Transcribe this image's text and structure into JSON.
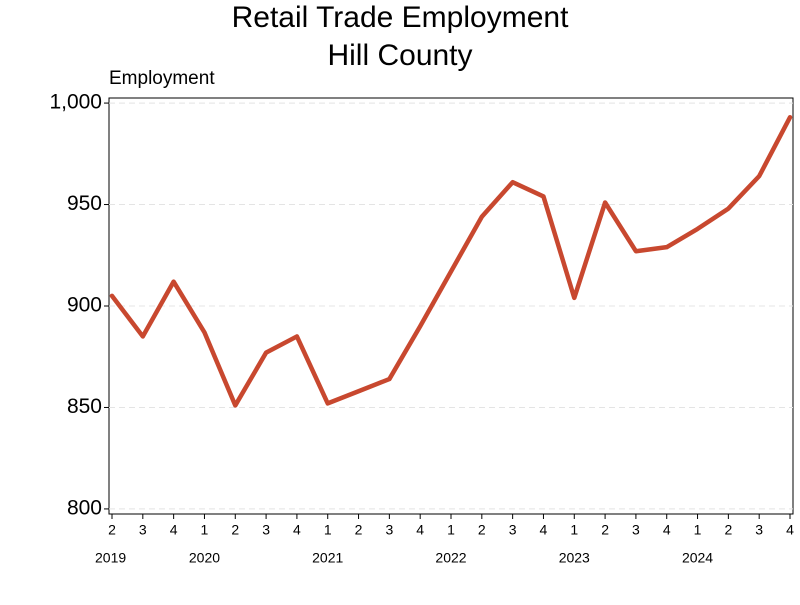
{
  "chart_data": {
    "type": "line",
    "title": [
      "Retail Trade Employment",
      "Hill County"
    ],
    "y_label": "Employment",
    "categories": [
      "2",
      "3",
      "4",
      "1",
      "2",
      "3",
      "4",
      "1",
      "2",
      "3",
      "4",
      "1",
      "2",
      "3",
      "4",
      "1",
      "2",
      "3",
      "4",
      "1",
      "2",
      "3",
      "4"
    ],
    "x_years": [
      "2019",
      null,
      null,
      "2020",
      null,
      null,
      null,
      "2021",
      null,
      null,
      null,
      "2022",
      null,
      null,
      null,
      "2023",
      null,
      null,
      null,
      "2024",
      null,
      null,
      null
    ],
    "series": [
      {
        "name": "Employment",
        "color": "#c8482f",
        "values": [
          905,
          885,
          912,
          887,
          851,
          877,
          885,
          852,
          858,
          864,
          890,
          917,
          944,
          961,
          954,
          904,
          951,
          927,
          929,
          938,
          948,
          964,
          993
        ]
      }
    ],
    "ylim": [
      797.5,
      1002.5
    ],
    "yticks": [
      800,
      850,
      900,
      950,
      {
        "value": 1000,
        "label": "1,000"
      }
    ],
    "grid": true
  }
}
